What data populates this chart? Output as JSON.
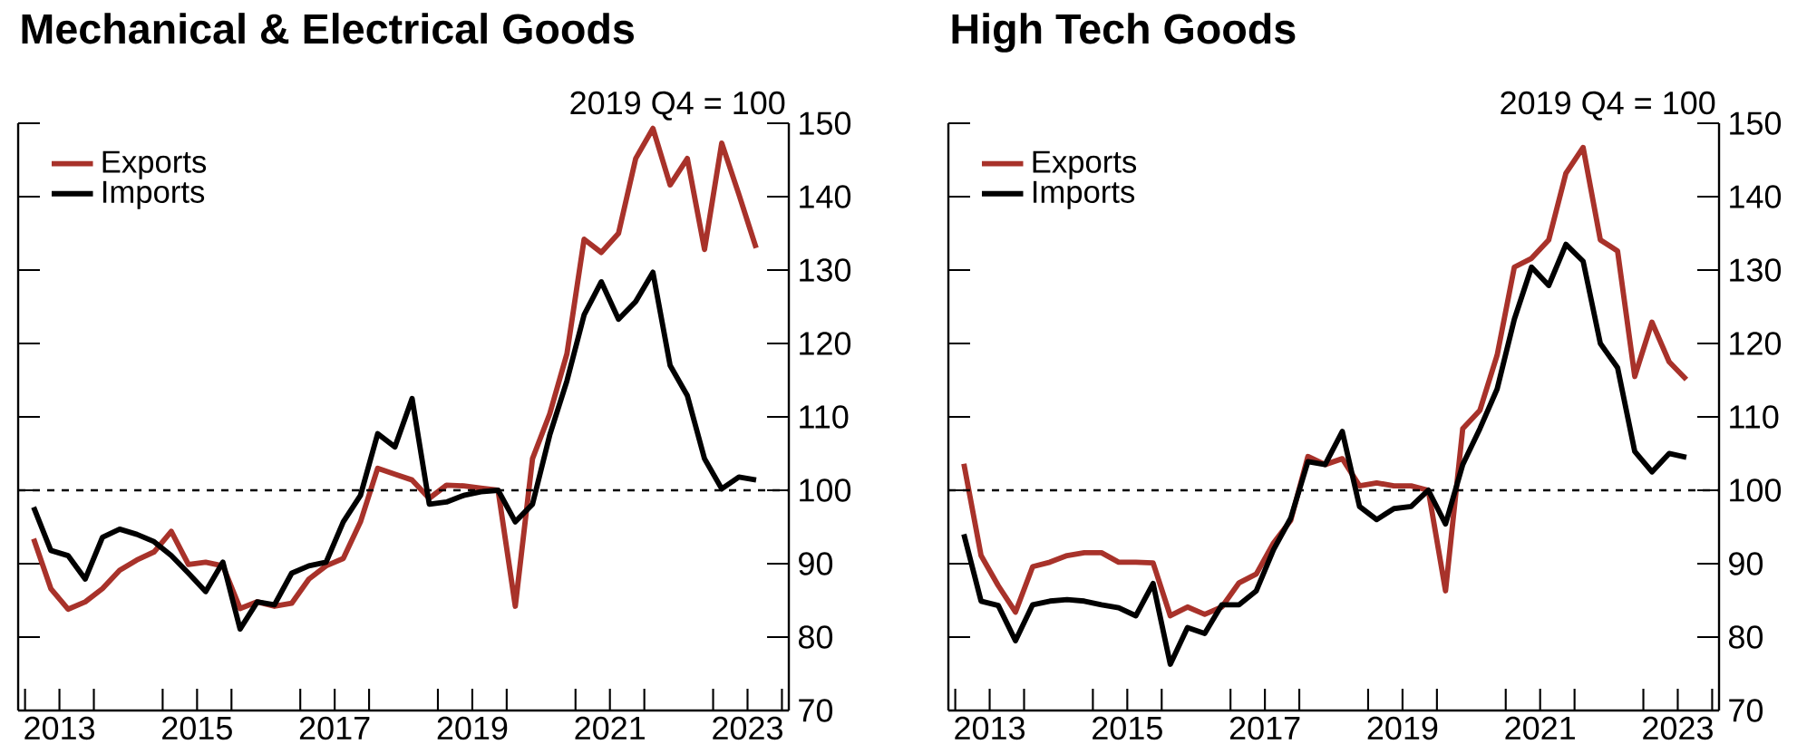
{
  "chart_data": [
    {
      "type": "line",
      "title": "Mechanical & Electrical Goods",
      "subtitle": "2019 Q4 = 100",
      "x": [
        2013.125,
        2013.375,
        2013.625,
        2013.875,
        2014.125,
        2014.375,
        2014.625,
        2014.875,
        2015.125,
        2015.375,
        2015.625,
        2015.875,
        2016.125,
        2016.375,
        2016.625,
        2016.875,
        2017.125,
        2017.375,
        2017.625,
        2017.875,
        2018.125,
        2018.375,
        2018.625,
        2018.875,
        2019.125,
        2019.375,
        2019.625,
        2019.875,
        2020.125,
        2020.375,
        2020.625,
        2020.875,
        2021.125,
        2021.375,
        2021.625,
        2021.875,
        2022.125,
        2022.375,
        2022.625,
        2022.875,
        2023.125,
        2023.375,
        2023.625
      ],
      "series": [
        {
          "name": "Exports",
          "color": "#a8322a",
          "values": [
            93.4,
            86.6,
            83.8,
            84.8,
            86.6,
            89.1,
            90.5,
            91.6,
            94.4,
            89.9,
            90.2,
            89.7,
            83.9,
            84.8,
            84.2,
            84.6,
            87.9,
            89.7,
            90.7,
            95.7,
            103.0,
            102.2,
            101.4,
            98.9,
            100.7,
            100.6,
            100.3,
            100,
            84.2,
            104.3,
            110.4,
            118.6,
            134.2,
            132.4,
            135.0,
            145.2,
            149.3,
            141.6,
            145.2,
            132.8,
            147.3,
            140.3,
            133.0
          ]
        },
        {
          "name": "Imports",
          "color": "#000000",
          "values": [
            97.7,
            91.8,
            91.1,
            87.9,
            93.6,
            94.7,
            94.0,
            93.0,
            91.1,
            88.7,
            86.2,
            90.2,
            81.1,
            84.8,
            84.4,
            88.7,
            89.7,
            90.2,
            95.7,
            99.3,
            107.7,
            105.9,
            112.5,
            98.1,
            98.4,
            99.3,
            99.8,
            100,
            95.7,
            98.1,
            107.5,
            114.9,
            123.9,
            128.4,
            123.3,
            125.7,
            129.7,
            117.0,
            112.9,
            104.3,
            100.2,
            101.8,
            101.4
          ]
        }
      ],
      "xlim": [
        2012.9,
        2024.1
      ],
      "xticks": [
        {
          "value": 2013,
          "label": null
        },
        {
          "value": 2013.5,
          "label": "2013"
        },
        {
          "value": 2014,
          "label": null
        },
        {
          "value": 2015,
          "label": null
        },
        {
          "value": 2015.5,
          "label": "2015"
        },
        {
          "value": 2016,
          "label": null
        },
        {
          "value": 2017,
          "label": null
        },
        {
          "value": 2017.5,
          "label": "2017"
        },
        {
          "value": 2018,
          "label": null
        },
        {
          "value": 2019,
          "label": null
        },
        {
          "value": 2019.5,
          "label": "2019"
        },
        {
          "value": 2020,
          "label": null
        },
        {
          "value": 2021,
          "label": null
        },
        {
          "value": 2021.5,
          "label": "2021"
        },
        {
          "value": 2022,
          "label": null
        },
        {
          "value": 2023,
          "label": null
        },
        {
          "value": 2023.5,
          "label": "2023"
        },
        {
          "value": 2024,
          "label": null
        }
      ],
      "ylim": [
        70,
        150
      ],
      "yticks": [
        70,
        80,
        90,
        100,
        110,
        120,
        130,
        140,
        150
      ],
      "ref_lines": [
        {
          "axis": "y",
          "value": 100,
          "color": "#000000",
          "line_style": "dashed"
        }
      ],
      "legend": "top left",
      "grid": false,
      "marker": "none",
      "line_style": "solid"
    },
    {
      "type": "line",
      "title": "High Tech Goods",
      "subtitle": "2019 Q4 = 100",
      "x": [
        2013.125,
        2013.375,
        2013.625,
        2013.875,
        2014.125,
        2014.375,
        2014.625,
        2014.875,
        2015.125,
        2015.375,
        2015.625,
        2015.875,
        2016.125,
        2016.375,
        2016.625,
        2016.875,
        2017.125,
        2017.375,
        2017.625,
        2017.875,
        2018.125,
        2018.375,
        2018.625,
        2018.875,
        2019.125,
        2019.375,
        2019.625,
        2019.875,
        2020.125,
        2020.375,
        2020.625,
        2020.875,
        2021.125,
        2021.375,
        2021.625,
        2021.875,
        2022.125,
        2022.375,
        2022.625,
        2022.875,
        2023.125,
        2023.375,
        2023.625
      ],
      "series": [
        {
          "name": "Exports",
          "color": "#a8322a",
          "values": [
            103.6,
            91.1,
            87.0,
            83.4,
            89.6,
            90.2,
            91.1,
            91.5,
            91.5,
            90.2,
            90.2,
            90.1,
            82.9,
            84.1,
            83.1,
            84.1,
            87.4,
            88.6,
            92.8,
            95.9,
            104.6,
            103.5,
            104.3,
            100.6,
            101.0,
            100.6,
            100.6,
            100,
            86.3,
            108.4,
            110.9,
            118.4,
            130.4,
            131.6,
            134.1,
            143.2,
            146.7,
            134.1,
            132.6,
            115.5,
            122.9,
            117.5,
            115.1
          ]
        },
        {
          "name": "Imports",
          "color": "#000000",
          "values": [
            94.0,
            84.9,
            84.3,
            79.5,
            84.4,
            84.9,
            85.1,
            84.9,
            84.4,
            84.0,
            82.9,
            87.3,
            76.3,
            81.3,
            80.5,
            84.4,
            84.4,
            86.3,
            91.9,
            96.2,
            103.9,
            103.5,
            108.0,
            97.8,
            96.0,
            97.5,
            97.8,
            100,
            95.4,
            103.5,
            108.4,
            113.8,
            123.3,
            130.4,
            127.9,
            133.5,
            131.2,
            120.0,
            116.7,
            105.3,
            102.5,
            105.0,
            104.5
          ]
        }
      ],
      "xlim": [
        2012.9,
        2024.1
      ],
      "xticks": [
        {
          "value": 2013,
          "label": null
        },
        {
          "value": 2013.5,
          "label": "2013"
        },
        {
          "value": 2014,
          "label": null
        },
        {
          "value": 2015,
          "label": null
        },
        {
          "value": 2015.5,
          "label": "2015"
        },
        {
          "value": 2016,
          "label": null
        },
        {
          "value": 2017,
          "label": null
        },
        {
          "value": 2017.5,
          "label": "2017"
        },
        {
          "value": 2018,
          "label": null
        },
        {
          "value": 2019,
          "label": null
        },
        {
          "value": 2019.5,
          "label": "2019"
        },
        {
          "value": 2020,
          "label": null
        },
        {
          "value": 2021,
          "label": null
        },
        {
          "value": 2021.5,
          "label": "2021"
        },
        {
          "value": 2022,
          "label": null
        },
        {
          "value": 2023,
          "label": null
        },
        {
          "value": 2023.5,
          "label": "2023"
        },
        {
          "value": 2024,
          "label": null
        }
      ],
      "ylim": [
        70,
        150
      ],
      "yticks": [
        70,
        80,
        90,
        100,
        110,
        120,
        130,
        140,
        150
      ],
      "ref_lines": [
        {
          "axis": "y",
          "value": 100,
          "color": "#000000",
          "line_style": "dashed"
        }
      ],
      "legend": "top left",
      "grid": false,
      "marker": "none",
      "line_style": "solid"
    }
  ]
}
